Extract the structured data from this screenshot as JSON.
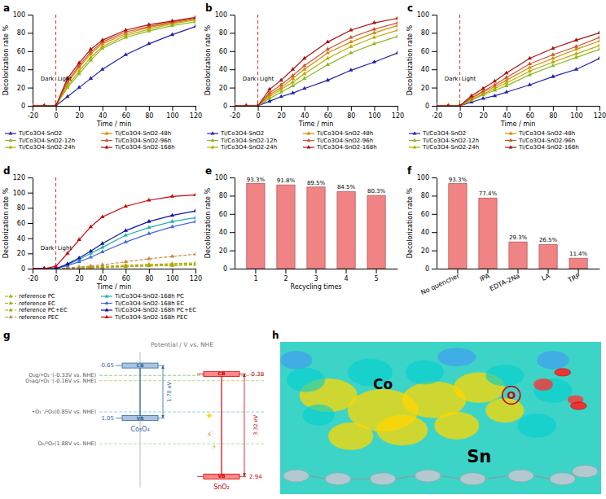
{
  "chart_data": [
    {
      "type": "line",
      "title": "a",
      "xlabel": "Time / min",
      "ylabel": "Decolorization rate %",
      "x": [
        -20,
        -10,
        0,
        10,
        20,
        30,
        40,
        60,
        80,
        100,
        120
      ],
      "series": [
        {
          "name": "Ti/Co3O4-SnO2",
          "color": "#2222AA",
          "values": [
            0,
            0,
            0,
            10,
            20,
            30,
            40,
            56,
            68,
            78,
            87
          ]
        },
        {
          "name": "Ti/Co3O4-SnO2-12h",
          "color": "#88BB22",
          "values": [
            0,
            0,
            0,
            20,
            35,
            50,
            63,
            75,
            82,
            88,
            92
          ]
        },
        {
          "name": "Ti/Co3O4-SnO2-24h",
          "color": "#BBAA00",
          "values": [
            0,
            0,
            0,
            22,
            38,
            53,
            65,
            77,
            84,
            90,
            94
          ]
        },
        {
          "name": "Ti/Co3O4-SnO2-48h",
          "color": "#DD8800",
          "values": [
            0,
            0,
            0,
            25,
            42,
            57,
            68,
            79,
            86,
            91,
            95
          ]
        },
        {
          "name": "Ti/Co3O4-SnO2-96h",
          "color": "#CC5533",
          "values": [
            0,
            0,
            0,
            27,
            44,
            59,
            70,
            81,
            87,
            92,
            96
          ]
        },
        {
          "name": "Ti/Co3O4-SnO2-168h",
          "color": "#AA1111",
          "values": [
            0,
            0,
            0,
            30,
            47,
            62,
            72,
            83,
            89,
            93,
            97
          ]
        }
      ],
      "xlim": [
        -20,
        120
      ],
      "xticks": [
        -20,
        0,
        20,
        40,
        60,
        80,
        100,
        120
      ],
      "ylim": [
        0,
        100
      ],
      "yticks": [
        0,
        20,
        40,
        60,
        80,
        100
      ],
      "marker": "triangle",
      "legend": "bottom",
      "vlines": [
        {
          "x": 0,
          "color": "#CC3333"
        }
      ],
      "annotations": [
        {
          "text": "Dark",
          "x": -1.5,
          "y": 28
        },
        {
          "text": "Light",
          "x": 1.5,
          "y": 28
        }
      ]
    },
    {
      "type": "line",
      "title": "b",
      "xlabel": "Time / min",
      "ylabel": "Decolorization rate %",
      "x": [
        -20,
        -10,
        0,
        10,
        20,
        30,
        40,
        60,
        80,
        100,
        120
      ],
      "series": [
        {
          "name": "Ti/Co3O4-SnO2",
          "color": "#2222AA",
          "values": [
            0,
            0,
            0,
            5,
            10,
            14,
            19,
            28,
            39,
            48,
            58
          ]
        },
        {
          "name": "Ti/Co3O4-SnO2-12h",
          "color": "#88BB22",
          "values": [
            0,
            0,
            0,
            8,
            15,
            22,
            30,
            45,
            58,
            68,
            76
          ]
        },
        {
          "name": "Ti/Co3O4-SnO2-24h",
          "color": "#BBAA00",
          "values": [
            0,
            0,
            0,
            10,
            18,
            26,
            35,
            52,
            65,
            75,
            83
          ]
        },
        {
          "name": "Ti/Co3O4-SnO2-48h",
          "color": "#DD8800",
          "values": [
            0,
            0,
            0,
            12,
            20,
            30,
            40,
            58,
            70,
            80,
            88
          ]
        },
        {
          "name": "Ti/Co3O4-SnO2-96h",
          "color": "#CC5533",
          "values": [
            0,
            0,
            0,
            14,
            23,
            33,
            44,
            62,
            75,
            84,
            91
          ]
        },
        {
          "name": "Ti/Co3O4-SnO2-168h",
          "color": "#AA1111",
          "values": [
            0,
            0,
            0,
            18,
            28,
            40,
            52,
            70,
            83,
            91,
            96
          ]
        }
      ],
      "xlim": [
        -20,
        120
      ],
      "xticks": [
        -20,
        0,
        20,
        40,
        60,
        80,
        100,
        120
      ],
      "ylim": [
        0,
        100
      ],
      "yticks": [
        0,
        20,
        40,
        60,
        80,
        100
      ],
      "marker": "triangle",
      "legend": "bottom",
      "vlines": [
        {
          "x": 0,
          "color": "#CC3333"
        }
      ],
      "annotations": [
        {
          "text": "Dark",
          "x": -1.5,
          "y": 28
        },
        {
          "text": "Light",
          "x": 1.5,
          "y": 28
        }
      ]
    },
    {
      "type": "line",
      "title": "c",
      "xlabel": "Time / min",
      "ylabel": "Decolorization rate %",
      "x": [
        -20,
        -10,
        0,
        10,
        20,
        30,
        40,
        60,
        80,
        100,
        120
      ],
      "series": [
        {
          "name": "Ti/Co3O4-SnO2",
          "color": "#2222AA",
          "values": [
            0,
            0,
            0,
            4,
            8,
            11,
            15,
            23,
            32,
            40,
            52
          ]
        },
        {
          "name": "Ti/Co3O4-SnO2-12h",
          "color": "#88BB22",
          "values": [
            0,
            0,
            0,
            6,
            12,
            17,
            22,
            34,
            44,
            53,
            62
          ]
        },
        {
          "name": "Ti/Co3O4-SnO2-24h",
          "color": "#BBAA00",
          "values": [
            0,
            0,
            0,
            7,
            13,
            19,
            25,
            38,
            48,
            57,
            66
          ]
        },
        {
          "name": "Ti/Co3O4-SnO2-48h",
          "color": "#DD8800",
          "values": [
            0,
            0,
            0,
            8,
            15,
            21,
            28,
            42,
            52,
            62,
            71
          ]
        },
        {
          "name": "Ti/Co3O4-SnO2-96h",
          "color": "#CC5533",
          "values": [
            0,
            0,
            0,
            9,
            16,
            23,
            31,
            46,
            56,
            65,
            75
          ]
        },
        {
          "name": "Ti/Co3O4-SnO2-168h",
          "color": "#AA1111",
          "values": [
            0,
            0,
            0,
            11,
            19,
            27,
            36,
            52,
            63,
            72,
            80
          ]
        }
      ],
      "xlim": [
        -20,
        120
      ],
      "xticks": [
        -20,
        0,
        20,
        40,
        60,
        80,
        100,
        120
      ],
      "ylim": [
        0,
        100
      ],
      "yticks": [
        0,
        20,
        40,
        60,
        80,
        100
      ],
      "marker": "triangle",
      "legend": "bottom",
      "vlines": [
        {
          "x": 0,
          "color": "#CC3333"
        }
      ],
      "annotations": [
        {
          "text": "Dark",
          "x": -1.5,
          "y": 28
        },
        {
          "text": "Light",
          "x": 1.5,
          "y": 28
        }
      ]
    },
    {
      "type": "line",
      "title": "d",
      "xlabel": "Time / min",
      "ylabel": "Decolorization rate %",
      "x": [
        -20,
        -10,
        0,
        10,
        20,
        30,
        40,
        60,
        80,
        100,
        120
      ],
      "series": [
        {
          "name": "reference PC",
          "color": "#AAAA00",
          "line_style": "dashed",
          "values": [
            0,
            0,
            0,
            0.5,
            1,
            1.5,
            2,
            3,
            4,
            5,
            6
          ]
        },
        {
          "name": "reference EC",
          "color": "#AAAA00",
          "line_style": "dashed",
          "values": [
            0,
            0,
            0,
            0.3,
            0.7,
            1,
            1.5,
            2.5,
            3.5,
            4,
            5
          ]
        },
        {
          "name": "reference PC+EC",
          "color": "#AAAA00",
          "line_style": "dashed",
          "values": [
            0,
            0,
            0,
            0.8,
            1.5,
            2.2,
            3,
            4.5,
            5.5,
            6.5,
            7.5
          ]
        },
        {
          "name": "reference PEC",
          "color": "#CC8844",
          "line_style": "dashed",
          "values": [
            0,
            0,
            0,
            1,
            2,
            3.5,
            5,
            9,
            13,
            16,
            19
          ]
        },
        {
          "name": "Ti/Co3O4-SnO2-168h PC",
          "color": "#20B2AA",
          "line_style": "solid",
          "values": [
            0,
            0,
            0,
            5,
            12,
            20,
            28,
            44,
            54,
            62,
            67
          ]
        },
        {
          "name": "Ti/Co3O4-SnO2-168h EC",
          "color": "#4169E1",
          "line_style": "solid",
          "values": [
            0,
            0,
            0,
            4,
            9,
            15,
            22,
            35,
            46,
            55,
            62
          ]
        },
        {
          "name": "Ti/Co3O4-SnO2-168h PC+EC",
          "color": "#1111AA",
          "line_style": "solid",
          "values": [
            0,
            0,
            0,
            6,
            14,
            23,
            33,
            50,
            62,
            70,
            76
          ]
        },
        {
          "name": "Ti/Co3O4-SnO2-168h PEC",
          "color": "#CC0000",
          "line_style": "solid",
          "values": [
            0,
            0,
            3,
            20,
            38,
            55,
            68,
            82,
            90,
            95,
            97
          ]
        }
      ],
      "xlim": [
        -20,
        120
      ],
      "xticks": [
        -20,
        0,
        20,
        40,
        60,
        80,
        100,
        120
      ],
      "ylim": [
        0,
        120
      ],
      "yticks": [
        0,
        20,
        40,
        60,
        80,
        100,
        120
      ],
      "marker": "triangle",
      "legend": "bottom",
      "vlines": [
        {
          "x": 0,
          "color": "#CC3333"
        }
      ],
      "annotations": [
        {
          "text": "Dark",
          "x": -1.5,
          "y": 25
        },
        {
          "text": "Light",
          "x": 1.5,
          "y": 25
        }
      ]
    },
    {
      "type": "bar",
      "title": "e",
      "xlabel": "Recycling times",
      "ylabel": "Decolorization rate %",
      "categories": [
        "1",
        "2",
        "3",
        "4",
        "5"
      ],
      "values": [
        93.3,
        91.8,
        89.5,
        84.5,
        80.3
      ],
      "value_labels": [
        "93.3%",
        "91.8%",
        "89.5%",
        "84.5%",
        "80.3%"
      ],
      "data_labels": true,
      "color": "#EE7777",
      "ylim": [
        0,
        100
      ],
      "yticks": [
        0,
        20,
        40,
        60,
        80,
        100
      ]
    },
    {
      "type": "bar",
      "title": "f",
      "ylabel": "Decolorization rate %",
      "categories": [
        "No quencher",
        "IPA",
        "EDTA-2Na",
        "LA",
        "TRP"
      ],
      "values": [
        93.3,
        77.4,
        29.3,
        26.5,
        11.4
      ],
      "value_labels": [
        "93.3%",
        "77.4%",
        "29.3%",
        "26.5%",
        "11.4%"
      ],
      "data_labels": true,
      "color": "#EE7777",
      "ylim": [
        0,
        100
      ],
      "yticks": [
        0,
        20,
        40,
        60,
        80,
        100
      ]
    },
    {
      "type": "band_diagram",
      "title": "g",
      "ylabel": "Potential / V vs. NHE",
      "ylim": [
        3.3,
        -1.1
      ],
      "tick_labels": false,
      "reference_lines": [
        {
          "y": -0.33,
          "label": "O₂g/•O₂⁻(-0.33V vs. NHE)",
          "color": "#7EC87E"
        },
        {
          "y": -0.16,
          "label": "O₂aq/•O₂⁻(-0.16V vs. NHE)",
          "color": "#BECE7E"
        },
        {
          "y": 0.85,
          "label": "•O₂⁻/¹O₂(0.85V vs. NHE)",
          "color": "#87CEEB"
        },
        {
          "y": 1.88,
          "label": "O₂/¹O₂(1.88V vs. NHE)",
          "color": "#90EE90"
        }
      ],
      "bands": [
        {
          "name": "Co₃O₄",
          "color": "#336699",
          "fill": "#A8C4E0",
          "cb": -0.65,
          "vb": 1.05,
          "gap_label": "1.70 eV"
        },
        {
          "name": "SnO₂",
          "color": "#CC0000",
          "fill": "#FF8888",
          "cb": -0.38,
          "vb": 2.94,
          "gap_label": "3.32 eV"
        }
      ],
      "band_labels": [
        "CB",
        "VB"
      ],
      "symbols": [
        "✦",
        "⚡",
        "⚡"
      ]
    },
    {
      "type": "illustration",
      "title": "h",
      "annotations": [
        {
          "text": "Co"
        },
        {
          "text": "Sn"
        },
        {
          "text": "O",
          "color": "#CC0000"
        }
      ]
    }
  ]
}
